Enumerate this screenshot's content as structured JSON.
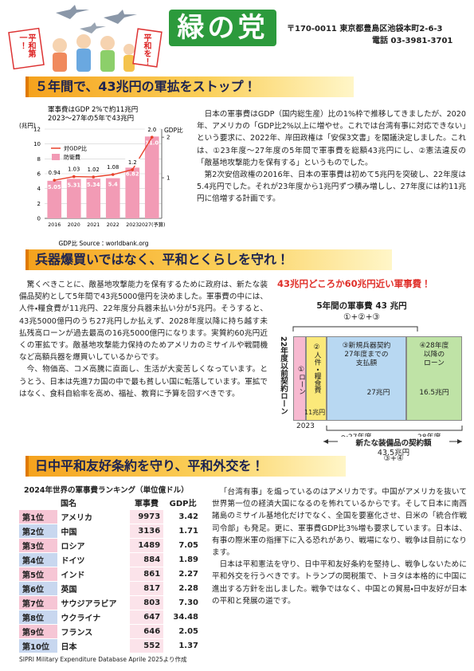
{
  "header": {
    "logo": "緑の党",
    "address": "〒170-0011 東京都豊島区池袋本町2-6-3",
    "phone": "電話 03-3981-3701",
    "sign_left": "平和第一！",
    "sign_right": "平和を！"
  },
  "section1": {
    "heading": "５年間で、43兆円の軍拡をストップ！",
    "paragraphs": [
      "日本の軍事費はGDP（国内総生産）比の1%枠で推移してきましたが、2020年、アメリカの「GDP比2%以上に増やせ。これでは台湾有事に対応できない」という要求に、2022年、岸田政権は「安保3文書」を閣議決定しました。これは、①23年度～27年度の5年間で軍事費を総額43兆円にし、②憲法違反の「敵基地攻撃能力を保有する」というものでした。",
      "第2次安倍政権の2016年、日本の軍事費は初めて5兆円を突破し、22年度は5.4兆円でした。それが23年度から1兆円ずつ積み増しし、27年度には約11兆円に倍増する計画です。"
    ]
  },
  "chart_data": {
    "type": "bar",
    "title": "軍事費はGDP 2%で約11兆円",
    "subtitle": "2023～27年の5年で43兆円",
    "y_label": "(兆円)",
    "y2_label": "GDP比",
    "source": "GDP比 Source：worldbank.org",
    "categories": [
      "2016",
      "2020",
      "2021",
      "2022",
      "2023",
      "2027(予算)"
    ],
    "series": [
      {
        "name": "対GDP比",
        "type": "line",
        "axis": "y2",
        "color": "#e8402a",
        "values": [
          0.94,
          1.03,
          1.02,
          1.08,
          1.2,
          2.0
        ],
        "value_labels": [
          "0.94",
          "1.03",
          "1.02",
          "1.08",
          "1.2",
          "2.0"
        ]
      },
      {
        "name": "防衛費",
        "type": "bar",
        "color": "#f29bb5",
        "values": [
          5.05,
          5.31,
          5.34,
          5.4,
          6.82,
          11.0
        ],
        "value_labels": [
          "5.05",
          "5.31",
          "5.34",
          "5.4",
          "6.82",
          "11.0"
        ]
      }
    ],
    "ylim": [
      0,
      12
    ],
    "yticks": [
      0,
      2,
      4,
      6,
      8,
      10,
      12
    ],
    "y2lim": [
      0,
      2.2
    ],
    "y2ticks": [
      1,
      2
    ],
    "grid": true
  },
  "section2": {
    "heading": "兵器爆買いではなく、平和とくらしを守れ！",
    "paragraphs": [
      "驚くべきことに、敵基地攻撃能力を保有するために政府は、新たな装備品契約として5年間で43兆5000億円を決めました。軍事費の中には、人件・糧食費が11兆円、22年度分兵器未払い分が5兆円。そうすると、43兆5000億円のうち27兆円しか払えず、2028年度以降に持ち越す未払残高ローンが過去最高の16兆5000億円になります。実質約60兆円近くの軍拡です。敵基地攻撃能力保持のためアメリカのミサイルや戦闘機など高額兵器を爆買いしているからです。",
      "今、物価高、コメ高騰に直面し、生活が大変苦しくなっています。とうとう、日本は先進7カ国の中で最も貧しい国に転落しています。軍拡ではなく、食料自給率を高め、福祉、教育に予算を回すべきです。"
    ],
    "diagram": {
      "title": "43兆円どころか60兆円近い軍事費！",
      "total": "5年間の軍事費 43 兆円",
      "total_formula": "①+②+③",
      "side_label": "22年度以前契約ローン",
      "box1": "①ローン",
      "box2": "②人件・糧食費",
      "box2_amount": "11兆円",
      "box3": [
        "③新規兵器契約",
        "27年度までの",
        "支払額"
      ],
      "box3_amount": "27兆円",
      "box4": [
        "④28年度",
        "以降の",
        "ローン"
      ],
      "box4_amount": "16.5兆円",
      "year_start": "2023",
      "year_mid": "～27年度",
      "year_end": "28年度",
      "contract": "新たな装備品の契約額",
      "contract_amount": "43.5兆円",
      "contract_formula": "③+④"
    }
  },
  "section3": {
    "heading": "日中平和友好条約を守り、平和外交を！",
    "paragraphs": [
      "「台湾有事」を煽っているのはアメリカです。中国がアメリカを抜いて世界第一位の経済大国になるのを怖れているからです。そして日本に南西諸島のミサイル基地化だけでなく、全国を要塞化させ、日米の「統合作戦司令部」も発足。更に、軍事費GDP比3%増も要求しています。日本は、有事の際米軍の指揮下に入る恐れがあり、戦場になり、戦争は目前になります。",
      "日本は平和憲法を守り、日中平和友好条約を堅持し、戦争しないために平和外交を行うべきです。トランプの関税策で、トヨタは本格的に中国に進出する方針を出しました。戦争ではなく、中国との貿易・日中友好が日本の平和と発展の道です。"
    ],
    "table": {
      "title": "2024年世界の軍事費ランキング（単位億ドル）",
      "header": [
        "国名",
        "軍事費",
        "GDP比"
      ],
      "rows": [
        [
          "第1位",
          "アメリカ",
          "9973",
          "3.42"
        ],
        [
          "第2位",
          "中国",
          "3136",
          "1.71"
        ],
        [
          "第3位",
          "ロシア",
          "1489",
          "7.05"
        ],
        [
          "第4位",
          "ドイツ",
          "884",
          "1.89"
        ],
        [
          "第5位",
          "インド",
          "861",
          "2.27"
        ],
        [
          "第6位",
          "英国",
          "817",
          "2.28"
        ],
        [
          "第7位",
          "サウジアラビア",
          "803",
          "7.30"
        ],
        [
          "第8位",
          "ウクライナ",
          "647",
          "34.48"
        ],
        [
          "第9位",
          "フランス",
          "646",
          "2.05"
        ],
        [
          "第10位",
          "日本",
          "552",
          "1.37"
        ]
      ],
      "source": "SIPRI Military Expenditure Database Aprile 2025より作成"
    }
  }
}
